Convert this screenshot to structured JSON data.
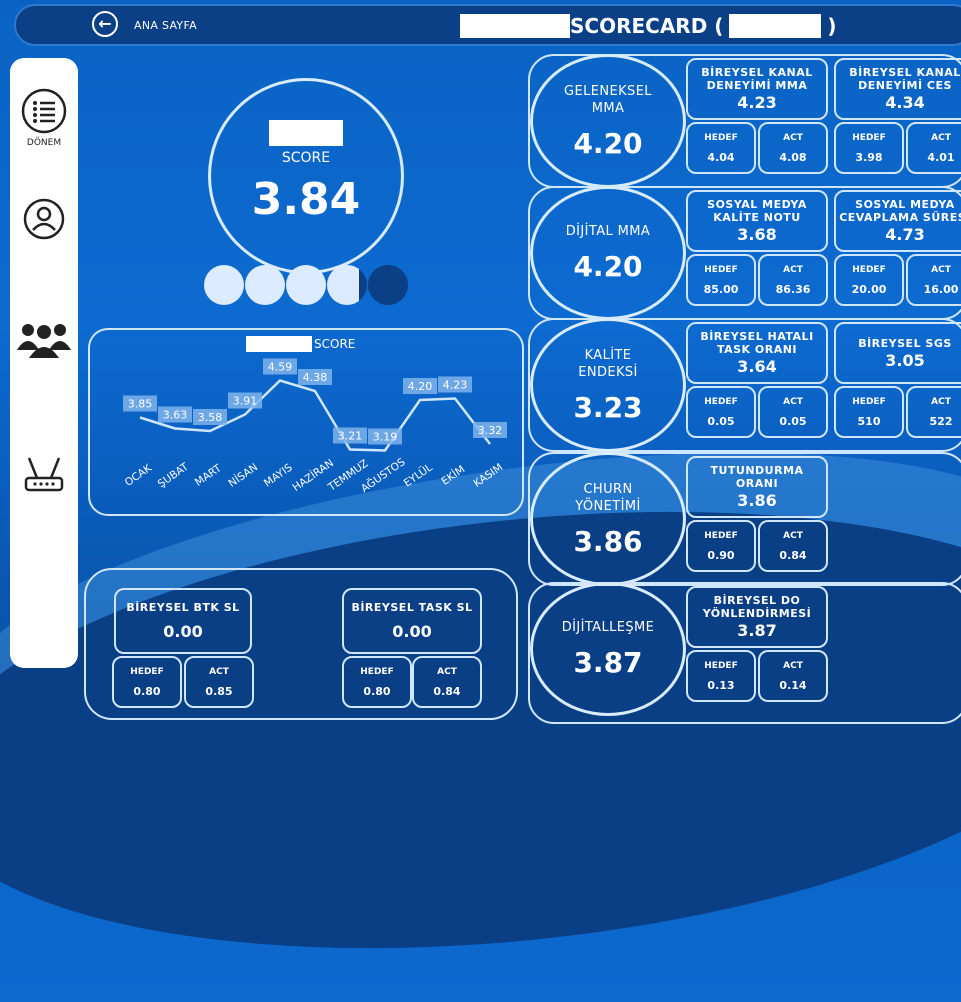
{
  "header": {
    "home_label": "ANA SAYFA",
    "title": "SCORECARD (",
    "title_close": ")"
  },
  "sidebar": {
    "items": [
      {
        "label": "DÖNEM",
        "icon": "menu-list-icon"
      },
      {
        "label": "",
        "icon": "user-icon"
      },
      {
        "label": "",
        "icon": "group-icon"
      },
      {
        "label": "",
        "icon": "router-icon"
      }
    ]
  },
  "score": {
    "label": "SCORE",
    "value": "3.84",
    "dots_filled": 3.8,
    "dots_total": 5
  },
  "trend": {
    "title": "SCORE",
    "chart_data": {
      "type": "line",
      "categories": [
        "OCAK",
        "ŞUBAT",
        "MART",
        "NİSAN",
        "MAYIS",
        "HAZİRAN",
        "TEMMUZ",
        "AĞUSTOS",
        "EYLÜL",
        "EKİM",
        "KASIM"
      ],
      "values": [
        3.85,
        3.63,
        3.58,
        3.91,
        4.59,
        4.38,
        3.21,
        3.19,
        4.2,
        4.23,
        3.32
      ],
      "labels": [
        "3.85",
        "3.63",
        "3.58",
        "3.91",
        "4.59",
        "4.38",
        "3.21",
        "3.19",
        "4.20",
        "4.23",
        "3.32"
      ]
    }
  },
  "bottom": {
    "btk": {
      "title": "BİREYSEL BTK SL",
      "value": "0.00",
      "hedef_label": "HEDEF",
      "hedef": "0.80",
      "act_label": "ACT",
      "act": "0.85"
    },
    "task": {
      "title": "BİREYSEL TASK SL",
      "value": "0.00",
      "hedef_label": "HEDEF",
      "hedef": "0.80",
      "act_label": "ACT",
      "act": "0.84"
    }
  },
  "groups": [
    {
      "name": "GELENEKSEL\nMMA",
      "value": "4.20",
      "kpis": [
        {
          "title": "BİREYSEL KANAL\nDENEYİMİ MMA",
          "value": "4.23",
          "hedef": "4.04",
          "act": "4.08"
        },
        {
          "title": "BİREYSEL KANAL\nDENEYİMİ CES",
          "value": "4.34",
          "hedef": "3.98",
          "act": "4.01"
        }
      ]
    },
    {
      "name": "DİJİTAL MMA",
      "value": "4.20",
      "kpis": [
        {
          "title": "SOSYAL MEDYA\nKALİTE NOTU",
          "value": "3.68",
          "hedef": "85.00",
          "act": "86.36"
        },
        {
          "title": "SOSYAL MEDYA\nCEVAPLAMA SÜRESİ",
          "value": "4.73",
          "hedef": "20.00",
          "act": "16.00"
        }
      ]
    },
    {
      "name": "KALİTE\nENDEKSİ",
      "value": "3.23",
      "kpis": [
        {
          "title": "BİREYSEL HATALI\nTASK ORANI",
          "value": "3.64",
          "hedef": "0.05",
          "act": "0.05"
        },
        {
          "title": "BİREYSEL SGS",
          "value": "3.05",
          "hedef": "510",
          "act": "522"
        }
      ]
    },
    {
      "name": "CHURN\nYÖNETİMİ",
      "value": "3.86",
      "kpis": [
        {
          "title": "TUTUNDURMA\nORANI",
          "value": "3.86",
          "hedef": "0.90",
          "act": "0.84"
        }
      ]
    },
    {
      "name": "DİJİTALLEŞME",
      "value": "3.87",
      "kpis": [
        {
          "title": "BİREYSEL DO\nYÖNLENDİRMESİ",
          "value": "3.87",
          "hedef": "0.13",
          "act": "0.14"
        }
      ]
    }
  ],
  "labels": {
    "hedef": "HEDEF",
    "act": "ACT"
  },
  "colors": {
    "background": "#0a63c4",
    "panel_border": "#cfe6ff",
    "dark_navy": "#0b3f86"
  }
}
